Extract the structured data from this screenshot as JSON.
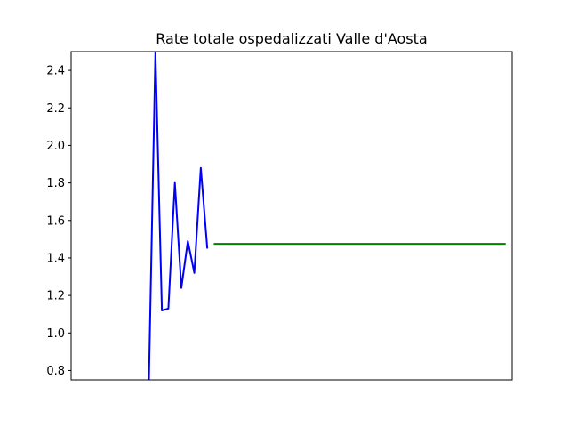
{
  "chart_data": {
    "type": "line",
    "title": "Rate totale ospedalizzati Valle d'Aosta",
    "xlabel": "",
    "ylabel": "",
    "ylim": [
      0.75,
      2.5
    ],
    "xlim": [
      0,
      68
    ],
    "x_ticks_visible": false,
    "y_ticks": [
      "0.8",
      "1.0",
      "1.2",
      "1.4",
      "1.6",
      "1.8",
      "2.0",
      "2.2",
      "2.4"
    ],
    "grid": false,
    "series": [
      {
        "color": "#0000ff",
        "x": [
          12,
          13,
          14,
          15,
          16,
          17,
          18,
          19,
          20,
          21,
          22,
          23
        ],
        "y": [
          0.75,
          2.5,
          1.12,
          1.13,
          1.8,
          1.24,
          1.49,
          1.32,
          1.88,
          1.45,
          null,
          null
        ]
      },
      {
        "color": "#008000",
        "x": [
          22,
          67
        ],
        "y": [
          1.475,
          1.475
        ]
      }
    ]
  }
}
